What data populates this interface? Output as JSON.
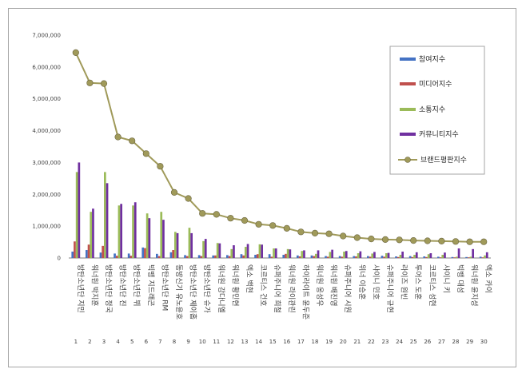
{
  "chart_data": {
    "type": "bar",
    "ylim": [
      0,
      7000000
    ],
    "yticks": [
      "0",
      "1,000,000",
      "2,000,000",
      "3,000,000",
      "4,000,000",
      "5,000,000",
      "6,000,000",
      "7,000,000"
    ],
    "categories": [
      "방탄소년단 지민",
      "워너원 박지훈",
      "방탄소년단 정국",
      "방탄소년단 진",
      "방탄소년단 뷔",
      "빅뱅 지드래곤",
      "방탄소년단 RM",
      "동방신기 유노윤호",
      "방탄소년단 제이홉",
      "방탄소년단 슈가",
      "워너원 강다니엘",
      "워너원 황민현",
      "엑소 백현",
      "코르티스 건호",
      "슈퍼주니어 희철",
      "워너원 라이관린",
      "하이라이트 윤두준",
      "워너원 옹성우",
      "워너원 배진영",
      "슈퍼주니어 시원",
      "위너 이승훈",
      "샤이니 민호",
      "슈퍼주니어 규현",
      "라이즈 원빈",
      "투어스 도훈",
      "코르티스 성현",
      "샤이니 키",
      "빅뱅 대성",
      "워너원 윤지성",
      "엑소 카이"
    ],
    "indices": [
      "1",
      "2",
      "3",
      "4",
      "5",
      "6",
      "7",
      "8",
      "9",
      "10",
      "11",
      "12",
      "13",
      "14",
      "15",
      "16",
      "17",
      "18",
      "19",
      "20",
      "21",
      "22",
      "23",
      "24",
      "25",
      "26",
      "27",
      "28",
      "29",
      "30"
    ],
    "series": [
      {
        "name": "참여지수",
        "color": "#4472c4",
        "values": [
          200000,
          250000,
          170000,
          140000,
          140000,
          330000,
          130000,
          180000,
          90000,
          90000,
          80000,
          90000,
          120000,
          100000,
          120000,
          100000,
          80000,
          80000,
          60000,
          60000,
          60000,
          60000,
          70000,
          50000,
          60000,
          50000,
          40000,
          30000,
          30000,
          40000
        ]
      },
      {
        "name": "미디어지수",
        "color": "#c0504d",
        "values": [
          520000,
          420000,
          380000,
          70000,
          70000,
          310000,
          60000,
          250000,
          60000,
          60000,
          80000,
          60000,
          80000,
          120000,
          40000,
          130000,
          50000,
          60000,
          40000,
          40000,
          50000,
          40000,
          40000,
          30000,
          30000,
          30000,
          20000,
          20000,
          20000,
          20000
        ]
      },
      {
        "name": "소통지수",
        "color": "#9bbb59",
        "values": [
          2700000,
          1450000,
          2700000,
          1650000,
          1650000,
          1400000,
          1450000,
          820000,
          950000,
          530000,
          470000,
          280000,
          350000,
          430000,
          300000,
          280000,
          220000,
          130000,
          190000,
          200000,
          150000,
          140000,
          150000,
          100000,
          100000,
          120000,
          100000,
          40000,
          40000,
          80000
        ]
      },
      {
        "name": "커뮤니티지수",
        "color": "#7030a0",
        "values": [
          3000000,
          1550000,
          2350000,
          1700000,
          1750000,
          1250000,
          1200000,
          780000,
          780000,
          600000,
          460000,
          400000,
          440000,
          420000,
          300000,
          270000,
          240000,
          240000,
          260000,
          220000,
          210000,
          190000,
          160000,
          200000,
          180000,
          150000,
          170000,
          300000,
          280000,
          180000
        ]
      }
    ],
    "line": {
      "name": "브랜드평판지수",
      "color": "#a09a5a",
      "values": [
        6450000,
        5500000,
        5480000,
        3800000,
        3680000,
        3280000,
        2880000,
        2060000,
        1870000,
        1400000,
        1370000,
        1250000,
        1180000,
        1060000,
        1020000,
        930000,
        820000,
        780000,
        760000,
        690000,
        640000,
        600000,
        580000,
        570000,
        550000,
        540000,
        530000,
        520000,
        510000,
        510000
      ]
    },
    "legend_position": "right"
  }
}
